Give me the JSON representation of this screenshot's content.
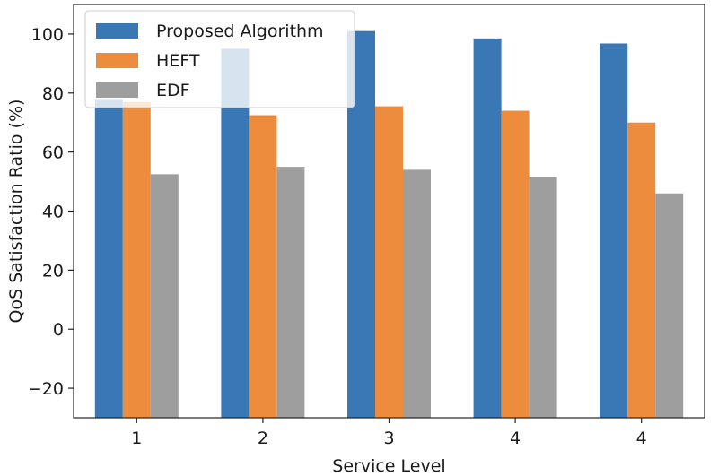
{
  "chart_data": {
    "type": "bar",
    "title": "",
    "xlabel": "Service Level",
    "ylabel": "QoS Satisfaction Ratio (%)",
    "categories": [
      "1",
      "2",
      "3",
      "4",
      "4"
    ],
    "ylim": [
      -30,
      110
    ],
    "yticks": [
      -20,
      0,
      20,
      40,
      60,
      80,
      100
    ],
    "grid": false,
    "legend_position": "top-left",
    "series": [
      {
        "name": "Proposed Algorithm",
        "color": "#3a78b5",
        "values": [
          78,
          95,
          101,
          98.5,
          96.8
        ]
      },
      {
        "name": "HEFT",
        "color": "#ec8c3c",
        "values": [
          77,
          72.5,
          75.5,
          74,
          70
        ]
      },
      {
        "name": "EDF",
        "color": "#9e9e9e",
        "values": [
          52.5,
          55,
          54,
          51.5,
          46
        ]
      }
    ]
  }
}
